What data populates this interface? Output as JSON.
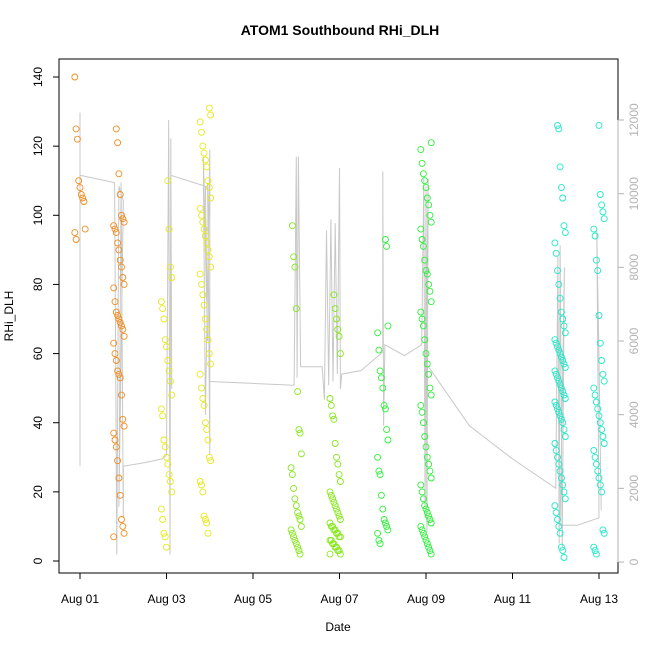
{
  "chart_data": {
    "type": "scatter",
    "title": "ATOM1 Southbound RHi_DLH",
    "xlabel": "Date",
    "ylabel": "RHi_DLH",
    "y2label": "",
    "x_ticks": [
      "Aug 01",
      "Aug 03",
      "Aug 05",
      "Aug 07",
      "Aug 09",
      "Aug 11",
      "Aug 13"
    ],
    "x_tick_days": [
      1,
      3,
      5,
      7,
      9,
      11,
      13
    ],
    "xlim_days": [
      1,
      13
    ],
    "ylim": [
      0,
      140
    ],
    "y_ticks": [
      0,
      20,
      40,
      60,
      80,
      100,
      120,
      140
    ],
    "y2lim": [
      0,
      12000
    ],
    "y2_ticks": [
      0,
      2000,
      4000,
      6000,
      8000,
      10000,
      12000
    ],
    "grid": false,
    "legend": "none",
    "colors": {
      "axis": "#000000",
      "right_axis": "#b3b3b3",
      "altitude_line": "#c8c8c8"
    },
    "series": [
      {
        "color": "#f28c1e",
        "groups": [
          {
            "day": 1.0,
            "values": [
              140,
              125,
              122,
              110,
              108,
              106,
              105,
              104,
              96,
              95,
              93
            ]
          },
          {
            "day": 1.9,
            "values": [
              125,
              121,
              112,
              106,
              100,
              99,
              98,
              97,
              96,
              95,
              92,
              90,
              87,
              85,
              82,
              80,
              79,
              75,
              72,
              71,
              70,
              69,
              68,
              67,
              65,
              63,
              60,
              58,
              55,
              54,
              53,
              48,
              41,
              39,
              37,
              35,
              33,
              29,
              24,
              19,
              12,
              10,
              8,
              7
            ]
          }
        ]
      },
      {
        "color": "#e8e81c",
        "groups": [
          {
            "day": 3.0,
            "values": [
              110,
              96,
              85,
              82,
              75,
              73,
              70,
              64,
              62,
              58,
              55,
              52,
              48,
              44,
              42,
              35,
              33,
              30,
              28,
              25,
              23,
              20,
              15,
              12,
              8,
              7,
              4
            ]
          },
          {
            "day": 3.9,
            "values": [
              131,
              129,
              127,
              124,
              120,
              118,
              116,
              114,
              110,
              108,
              105,
              102,
              100,
              98,
              96,
              94,
              92,
              90,
              88,
              85,
              83,
              80,
              77,
              74,
              70,
              67,
              64,
              60,
              57,
              54,
              50,
              47,
              45,
              40,
              38,
              35,
              30,
              29,
              23,
              22,
              20,
              13,
              12,
              11,
              8
            ]
          }
        ]
      },
      {
        "color": "#86e81c",
        "groups": [
          {
            "day": 6.0,
            "values": [
              97,
              88,
              85,
              73,
              49,
              38,
              37,
              31,
              27,
              25,
              21,
              18,
              16,
              14,
              13,
              12,
              10,
              9,
              8,
              7,
              6,
              5,
              4,
              3,
              2
            ]
          },
          {
            "day": 6.9,
            "values": [
              77,
              73,
              70,
              67,
              65,
              60,
              47,
              45,
              42,
              41,
              34,
              30,
              28,
              25,
              23,
              20,
              19,
              18,
              17,
              16,
              15,
              14,
              13,
              12,
              11,
              10,
              10,
              9,
              9,
              8,
              8,
              7,
              7,
              6,
              6,
              5,
              5,
              4,
              4,
              3,
              3,
              2,
              2
            ]
          }
        ]
      },
      {
        "color": "#2ef03a",
        "groups": [
          {
            "day": 8.0,
            "values": [
              93,
              91,
              68,
              66,
              61,
              55,
              53,
              50,
              45,
              44,
              38,
              35,
              30,
              26,
              25,
              19,
              15,
              12,
              11,
              10,
              9,
              8,
              6,
              5
            ]
          },
          {
            "day": 9.0,
            "values": [
              121,
              119,
              115,
              112,
              110,
              108,
              105,
              103,
              100,
              98,
              96,
              93,
              91,
              87,
              84,
              83,
              80,
              78,
              75,
              72,
              70,
              68,
              64,
              60,
              57,
              54,
              50,
              48,
              45,
              43,
              40,
              36,
              33,
              30,
              28,
              26,
              24,
              22,
              20,
              18,
              16,
              15,
              14,
              13,
              12,
              11,
              10,
              9,
              8,
              7,
              6,
              5,
              4,
              3,
              2
            ]
          }
        ]
      },
      {
        "color": "#1ee8c8",
        "groups": [
          {
            "day": 12.1,
            "values": [
              126,
              125,
              114,
              108,
              105,
              97,
              95,
              92,
              89,
              84,
              80,
              76,
              72,
              70,
              68,
              66,
              64,
              63,
              62,
              61,
              60,
              59,
              58,
              57,
              56,
              55,
              54,
              53,
              52,
              51,
              50,
              49,
              48,
              47,
              46,
              45,
              44,
              43,
              42,
              41,
              40,
              38,
              36,
              34,
              32,
              30,
              28,
              26,
              24,
              22,
              20,
              18,
              16,
              14,
              12,
              10,
              8,
              4,
              3,
              1
            ]
          },
          {
            "day": 13.0,
            "values": [
              126,
              106,
              103,
              101,
              99,
              96,
              94,
              87,
              84,
              71,
              63,
              58,
              54,
              52,
              50,
              48,
              46,
              44,
              42,
              40,
              38,
              36,
              34,
              32,
              30,
              28,
              26,
              24,
              22,
              20,
              9,
              8,
              4,
              3,
              2
            ]
          }
        ]
      }
    ],
    "altitude_path": [
      [
        1.0,
        12200
      ],
      [
        1.0,
        10500
      ],
      [
        1.0,
        6000
      ],
      [
        1.0,
        2600
      ],
      [
        1.0,
        6500
      ],
      [
        1.0,
        10500
      ],
      [
        1.8,
        10300
      ],
      [
        1.85,
        200
      ],
      [
        1.9,
        10200
      ],
      [
        1.95,
        10000
      ],
      [
        2.0,
        9800
      ],
      [
        1.9,
        1500
      ],
      [
        1.95,
        10300
      ],
      [
        2.0,
        1200
      ],
      [
        2.0,
        2600
      ],
      [
        2.5,
        2700
      ],
      [
        2.9,
        2800
      ],
      [
        3.0,
        2900
      ],
      [
        3.05,
        12000
      ],
      [
        3.08,
        200
      ],
      [
        3.1,
        11500
      ],
      [
        3.12,
        4700
      ],
      [
        3.1,
        10500
      ],
      [
        3.9,
        10200
      ],
      [
        3.95,
        6000
      ],
      [
        3.85,
        11000
      ],
      [
        3.9,
        4000
      ],
      [
        4.0,
        11200
      ],
      [
        4.0,
        3700
      ],
      [
        3.95,
        10300
      ],
      [
        4.0,
        2900
      ],
      [
        4.0,
        4900
      ],
      [
        5.0,
        4850
      ],
      [
        5.95,
        4800
      ],
      [
        6.0,
        11000
      ],
      [
        6.02,
        5000
      ],
      [
        6.05,
        11000
      ],
      [
        6.1,
        5300
      ],
      [
        6.6,
        5300
      ],
      [
        6.65,
        4400
      ],
      [
        6.7,
        9000
      ],
      [
        6.75,
        4800
      ],
      [
        6.8,
        9300
      ],
      [
        6.85,
        4900
      ],
      [
        6.9,
        9200
      ],
      [
        6.95,
        5100
      ],
      [
        7.0,
        10700
      ],
      [
        7.02,
        4700
      ],
      [
        7.05,
        5100
      ],
      [
        7.5,
        5200
      ],
      [
        8.0,
        5700
      ],
      [
        8.0,
        10600
      ],
      [
        8.02,
        3700
      ],
      [
        8.05,
        5900
      ],
      [
        8.5,
        5600
      ],
      [
        8.9,
        5900
      ],
      [
        8.95,
        10400
      ],
      [
        8.98,
        1200
      ],
      [
        9.0,
        10200
      ],
      [
        9.02,
        800
      ],
      [
        9.05,
        10400
      ],
      [
        9.0,
        5400
      ],
      [
        10.0,
        3700
      ],
      [
        11.0,
        2800
      ],
      [
        12.0,
        2000
      ],
      [
        12.05,
        8300
      ],
      [
        12.08,
        500
      ],
      [
        12.1,
        8600
      ],
      [
        12.15,
        400
      ],
      [
        12.2,
        8000
      ],
      [
        12.1,
        1000
      ],
      [
        12.5,
        1000
      ],
      [
        13.0,
        1200
      ],
      [
        12.95,
        9000
      ],
      [
        13.0,
        5500
      ],
      [
        13.05,
        1400
      ]
    ]
  }
}
